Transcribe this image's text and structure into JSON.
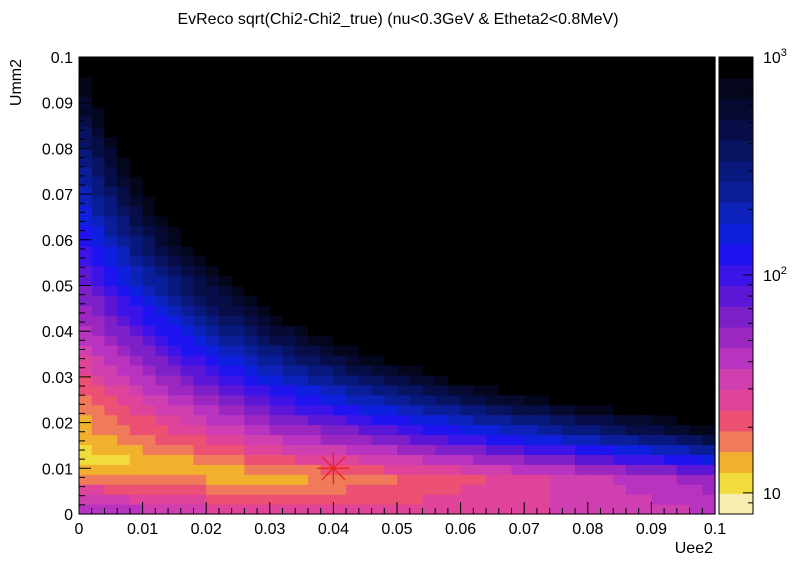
{
  "chart_data": {
    "type": "heatmap",
    "title": "EvReco sqrt(Chi2-Chi2_true) (nu<0.3GeV & Etheta2<0.8MeV)",
    "xlabel": "Uee2",
    "ylabel": "Umm2",
    "xlim": [
      0,
      0.1
    ],
    "ylim": [
      0,
      0.1
    ],
    "x_ticks": [
      "0",
      "0.01",
      "0.02",
      "0.03",
      "0.04",
      "0.05",
      "0.06",
      "0.07",
      "0.08",
      "0.09",
      "0.1"
    ],
    "y_ticks": [
      "0",
      "0.01",
      "0.02",
      "0.03",
      "0.04",
      "0.05",
      "0.06",
      "0.07",
      "0.08",
      "0.09",
      "0.1"
    ],
    "z_scale": "log",
    "zlim": [
      8,
      1000
    ],
    "colorbar": {
      "labels": [
        {
          "base": "10",
          "exp": "3",
          "value": 1000
        },
        {
          "base": "10",
          "exp": "2",
          "value": 100
        },
        {
          "base": "10",
          "exp": "",
          "value": 10
        }
      ]
    },
    "grid": "off",
    "best_fit_marker": {
      "x": 0.04,
      "y": 0.01,
      "color": "#e8231c"
    },
    "palette": [
      "#f7edb0",
      "#f0dc3a",
      "#f2b12c",
      "#ef7b5a",
      "#ec5072",
      "#e0449a",
      "#cf3fb0",
      "#b833bf",
      "#9c27c0",
      "#7d20c8",
      "#5c16d6",
      "#3c14e8",
      "#1e14f0",
      "#0f1fde",
      "#0c22bb",
      "#0a1e9a",
      "#08187c",
      "#081361",
      "#070e47",
      "#060a30",
      "#04061c",
      "#000000"
    ],
    "cells_note": "",
    "source_grid": {
      "nx": 50,
      "ny": 46
    }
  }
}
